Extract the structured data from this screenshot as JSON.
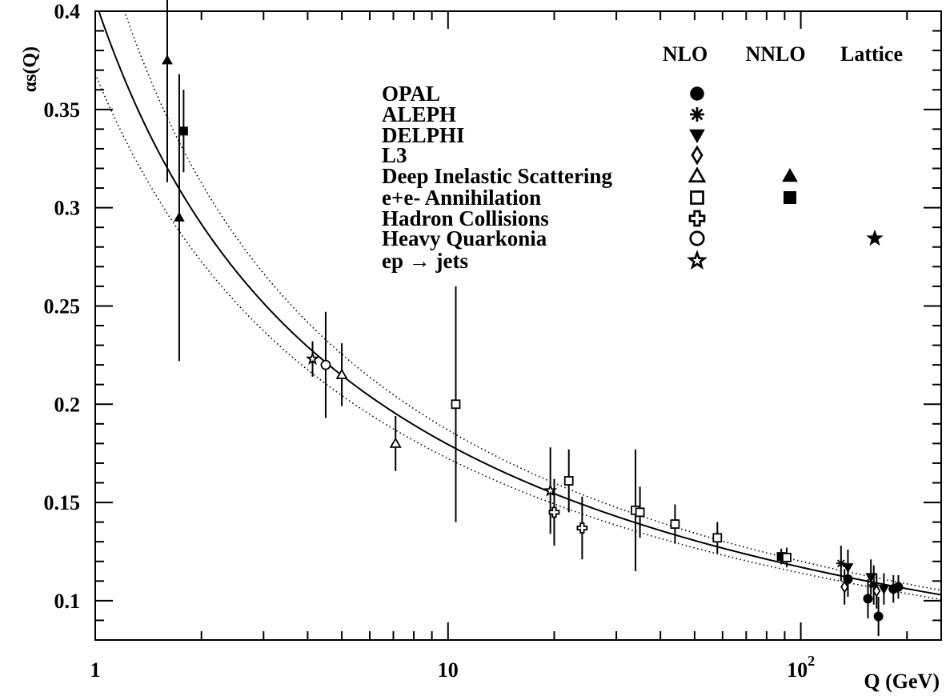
{
  "chart_data": {
    "type": "scatter",
    "xscale": "log",
    "xlim": [
      1,
      250
    ],
    "ylim": [
      0.08,
      0.4
    ],
    "xlabel": "Q (GeV)",
    "ylabel": "αs(Q)",
    "x_ticks": [
      {
        "value": 1,
        "label": "1"
      },
      {
        "value": 10,
        "label": "10"
      },
      {
        "value": 100,
        "label": "10",
        "sup": "2"
      }
    ],
    "y_ticks": [
      {
        "value": 0.1,
        "label": "0.1"
      },
      {
        "value": 0.15,
        "label": "0.15"
      },
      {
        "value": 0.2,
        "label": "0.2"
      },
      {
        "value": 0.25,
        "label": "0.25"
      },
      {
        "value": 0.3,
        "label": "0.3"
      },
      {
        "value": 0.35,
        "label": "0.35"
      },
      {
        "value": 0.4,
        "label": "0.4"
      }
    ],
    "grid": false,
    "legend_columns": [
      "NLO",
      "NNLO",
      "Lattice"
    ],
    "legend": [
      {
        "label": "OPAL",
        "markers": [
          "circle-filled",
          "",
          ""
        ]
      },
      {
        "label": "ALEPH",
        "markers": [
          "asterisk",
          "",
          ""
        ]
      },
      {
        "label": "DELPHI",
        "markers": [
          "triangle-down-filled",
          "",
          ""
        ]
      },
      {
        "label": "L3",
        "markers": [
          "diamond-open",
          "",
          ""
        ]
      },
      {
        "label": "Deep Inelastic Scattering",
        "markers": [
          "triangle-up-open",
          "triangle-up-filled",
          ""
        ]
      },
      {
        "label": "e+e- Annihilation",
        "markers": [
          "square-open",
          "square-filled",
          ""
        ]
      },
      {
        "label": "Hadron Collisions",
        "markers": [
          "cross-open",
          "",
          ""
        ]
      },
      {
        "label": "Heavy Quarkonia",
        "markers": [
          "circle-open",
          "",
          "star-filled"
        ]
      },
      {
        "label": "ep → jets",
        "markers": [
          "star-open",
          "",
          ""
        ]
      }
    ],
    "curves": [
      {
        "style": "solid",
        "alphas_mz": 0.1187
      },
      {
        "style": "dotted",
        "alphas_mz": 0.1218
      },
      {
        "style": "dotted",
        "alphas_mz": 0.1156
      }
    ],
    "points": [
      {
        "x": 1.6,
        "y": 0.375,
        "err": 0.062,
        "marker": "triangle-up-filled"
      },
      {
        "x": 1.73,
        "y": 0.295,
        "err": 0.073,
        "marker": "triangle-up-filled"
      },
      {
        "x": 1.78,
        "y": 0.339,
        "err": 0.021,
        "marker": "square-filled"
      },
      {
        "x": 4.13,
        "y": 0.223,
        "err": 0.009,
        "marker": "star-open"
      },
      {
        "x": 4.5,
        "y": 0.22,
        "err": 0.027,
        "marker": "circle-open"
      },
      {
        "x": 5.0,
        "y": 0.215,
        "err": 0.016,
        "marker": "triangle-up-open"
      },
      {
        "x": 7.1,
        "y": 0.18,
        "err": 0.014,
        "marker": "triangle-up-open"
      },
      {
        "x": 10.52,
        "y": 0.2,
        "err": 0.06,
        "marker": "square-open"
      },
      {
        "x": 19.5,
        "y": 0.156,
        "err": 0.022,
        "marker": "star-open"
      },
      {
        "x": 20.0,
        "y": 0.145,
        "err": 0.017,
        "marker": "cross-open"
      },
      {
        "x": 22.0,
        "y": 0.161,
        "err": 0.016,
        "marker": "square-open"
      },
      {
        "x": 24.0,
        "y": 0.137,
        "err": 0.016,
        "marker": "cross-open"
      },
      {
        "x": 34.0,
        "y": 0.146,
        "err": 0.031,
        "marker": "square-open"
      },
      {
        "x": 35.0,
        "y": 0.145,
        "err": 0.013,
        "marker": "square-open"
      },
      {
        "x": 44.0,
        "y": 0.139,
        "err": 0.01,
        "marker": "square-open"
      },
      {
        "x": 58.0,
        "y": 0.132,
        "err": 0.008,
        "marker": "square-open"
      },
      {
        "x": 88.0,
        "y": 0.1225,
        "err": 0.004,
        "marker": "square-filled"
      },
      {
        "x": 91.2,
        "y": 0.122,
        "err": 0.005,
        "marker": "square-open"
      },
      {
        "x": 130.0,
        "y": 0.119,
        "err": 0.009,
        "marker": "asterisk"
      },
      {
        "x": 133.0,
        "y": 0.107,
        "err": 0.009,
        "marker": "diamond-open"
      },
      {
        "x": 136.0,
        "y": 0.117,
        "err": 0.009,
        "marker": "triangle-down-filled"
      },
      {
        "x": 136.0,
        "y": 0.111,
        "err": 0.009,
        "marker": "circle-filled"
      },
      {
        "x": 155.0,
        "y": 0.101,
        "err": 0.01,
        "marker": "circle-filled"
      },
      {
        "x": 158.0,
        "y": 0.112,
        "err": 0.009,
        "marker": "triangle-down-filled"
      },
      {
        "x": 161.0,
        "y": 0.108,
        "err": 0.01,
        "marker": "asterisk"
      },
      {
        "x": 164.0,
        "y": 0.105,
        "err": 0.009,
        "marker": "diamond-open"
      },
      {
        "x": 166.0,
        "y": 0.092,
        "err": 0.01,
        "marker": "circle-filled"
      },
      {
        "x": 172.0,
        "y": 0.106,
        "err": 0.008,
        "marker": "triangle-down-filled"
      },
      {
        "x": 183.0,
        "y": 0.106,
        "err": 0.007,
        "marker": "circle-filled"
      },
      {
        "x": 189.0,
        "y": 0.107,
        "err": 0.006,
        "marker": "circle-filled"
      }
    ]
  }
}
